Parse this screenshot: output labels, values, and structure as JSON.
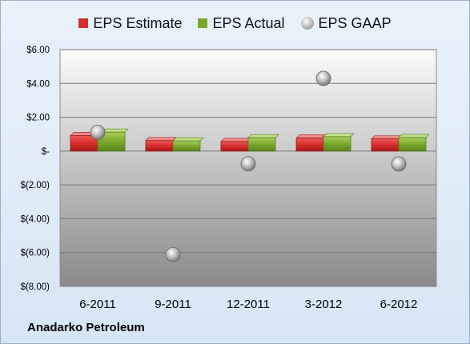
{
  "company_label": "Anadarko Petroleum",
  "colors": {
    "estimate": "#d62c2c",
    "actual": "#7aa82c",
    "gaap": "#9e9e9e"
  },
  "chart_data": {
    "type": "bar",
    "categories": [
      "6-2011",
      "9-2011",
      "12-2011",
      "3-2012",
      "6-2012"
    ],
    "series": [
      {
        "name": "EPS Estimate",
        "type": "bar",
        "values": [
          0.92,
          0.62,
          0.57,
          0.77,
          0.72
        ]
      },
      {
        "name": "EPS Actual",
        "type": "bar",
        "values": [
          1.12,
          0.6,
          0.79,
          0.85,
          0.8
        ]
      },
      {
        "name": "EPS GAAP",
        "type": "scatter",
        "values": [
          1.11,
          -6.12,
          -0.75,
          4.3,
          -0.76
        ]
      }
    ],
    "ylim": [
      -8,
      6
    ],
    "yticks": [
      6,
      4,
      2,
      0,
      -2,
      -4,
      -6,
      -8
    ],
    "ytick_labels": [
      "$6.00",
      "$4.00",
      "$2.00",
      "$-",
      "$(2.00)",
      "$(4.00)",
      "$(6.00)",
      "$(8.00)"
    ],
    "grid": true,
    "legend_position": "top"
  }
}
